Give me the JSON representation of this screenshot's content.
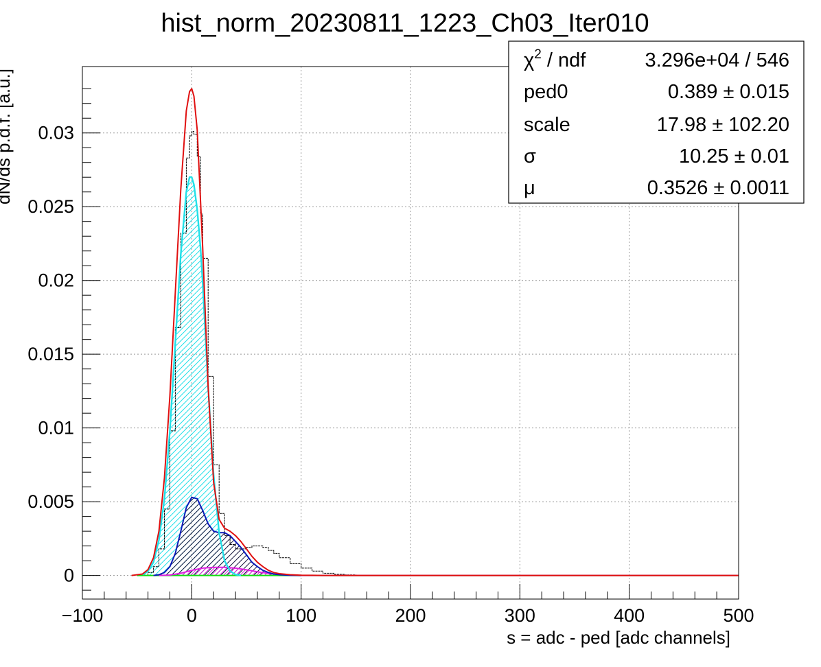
{
  "chart_data": {
    "type": "line",
    "title": "hist_norm_20230811_1223_Ch03_Iter010",
    "xlabel": "s = adc - ped [adc channels]",
    "ylabel": "dN/ds p.d.f. [a.u.]",
    "xlim": [
      -100,
      500
    ],
    "ylim": [
      -0.0016,
      0.0345
    ],
    "grid": true,
    "x_ticks": [
      -100,
      0,
      100,
      200,
      300,
      400,
      500
    ],
    "x_tick_labels": [
      "−100",
      "0",
      "100",
      "200",
      "300",
      "400",
      "500"
    ],
    "y_ticks": [
      0,
      0.005,
      0.01,
      0.015,
      0.02,
      0.025,
      0.03
    ],
    "y_tick_labels": [
      "0",
      "0.005",
      "0.01",
      "0.015",
      "0.02",
      "0.025",
      "0.03"
    ],
    "colors": {
      "data": "#000000",
      "total_fit": "#e01010",
      "pedestal": "#22e0e8",
      "one_pe": "#0a1ab8",
      "two_pe": "#e020e0",
      "background": "#10e010"
    },
    "series": [
      {
        "key": "data",
        "style": "histogram",
        "x": [
          -50,
          -40,
          -35,
          -30,
          -25,
          -20,
          -15,
          -10,
          -5,
          -2,
          0,
          2,
          5,
          8,
          10,
          15,
          20,
          25,
          30,
          35,
          40,
          45,
          50,
          55,
          60,
          65,
          70,
          75,
          80,
          90,
          100,
          110,
          120,
          130,
          140,
          150,
          160,
          170,
          180,
          200,
          250,
          300,
          400,
          500
        ],
        "y": [
          0,
          0.0002,
          0.0006,
          0.0018,
          0.0045,
          0.0098,
          0.0168,
          0.0232,
          0.0283,
          0.0298,
          0.0301,
          0.0299,
          0.0284,
          0.0245,
          0.0215,
          0.0135,
          0.0075,
          0.0042,
          0.0027,
          0.0021,
          0.0018,
          0.0018,
          0.0019,
          0.002,
          0.002,
          0.0019,
          0.0017,
          0.0015,
          0.0012,
          0.0008,
          0.0005,
          0.0003,
          0.00015,
          8e-05,
          4e-05,
          2e-05,
          1e-05,
          5e-06,
          0,
          0,
          0,
          0,
          0,
          0
        ]
      },
      {
        "key": "total_fit",
        "style": "line",
        "x": [
          -55,
          -45,
          -40,
          -35,
          -30,
          -25,
          -20,
          -15,
          -10,
          -5,
          -2,
          0,
          2,
          5,
          10,
          15,
          20,
          25,
          30,
          35,
          40,
          45,
          50,
          55,
          60,
          65,
          70,
          75,
          80,
          90,
          100,
          110,
          120,
          500
        ],
        "y": [
          0,
          0.0001,
          0.0004,
          0.0012,
          0.003,
          0.0066,
          0.0122,
          0.0192,
          0.0262,
          0.0315,
          0.0328,
          0.033,
          0.0325,
          0.0302,
          0.0222,
          0.0128,
          0.0063,
          0.0038,
          0.0032,
          0.003,
          0.0027,
          0.0023,
          0.0018,
          0.0013,
          0.0009,
          0.0006,
          0.00035,
          0.0002,
          0.00012,
          5e-05,
          2e-05,
          1e-05,
          0,
          0
        ]
      },
      {
        "key": "pedestal",
        "style": "filled-hatched",
        "x": [
          -45,
          -40,
          -35,
          -30,
          -25,
          -20,
          -15,
          -10,
          -5,
          -2,
          0,
          2,
          5,
          8,
          10,
          15,
          20,
          25,
          30,
          35,
          40,
          45
        ],
        "y": [
          5e-05,
          0.0003,
          0.0009,
          0.0024,
          0.0052,
          0.0098,
          0.0158,
          0.0218,
          0.026,
          0.027,
          0.027,
          0.0265,
          0.0248,
          0.0222,
          0.0198,
          0.0128,
          0.0068,
          0.0029,
          0.001,
          0.0003,
          6e-05,
          0
        ]
      },
      {
        "key": "one_pe",
        "style": "filled-hatched",
        "x": [
          -35,
          -30,
          -25,
          -20,
          -15,
          -10,
          -5,
          0,
          5,
          10,
          15,
          20,
          25,
          30,
          35,
          40,
          45,
          50,
          55,
          60,
          65,
          70,
          75,
          80,
          90,
          100
        ],
        "y": [
          0,
          5e-05,
          0.0002,
          0.0006,
          0.0015,
          0.003,
          0.0046,
          0.0053,
          0.0052,
          0.0044,
          0.0035,
          0.003,
          0.0029,
          0.0029,
          0.0027,
          0.0023,
          0.0019,
          0.0014,
          0.0009,
          0.0006,
          0.00035,
          0.0002,
          0.0001,
          5e-05,
          1e-05,
          0
        ]
      },
      {
        "key": "two_pe",
        "style": "filled-hatched",
        "x": [
          -30,
          -20,
          -10,
          0,
          10,
          20,
          30,
          40,
          50,
          60,
          70,
          80,
          90,
          100,
          500
        ],
        "y": [
          0,
          3e-05,
          0.00015,
          0.00035,
          0.0005,
          0.00055,
          0.00055,
          0.0005,
          0.00038,
          0.00025,
          0.00014,
          6e-05,
          2e-05,
          0,
          0
        ]
      },
      {
        "key": "background",
        "style": "line",
        "x": [
          -50,
          500
        ],
        "y": [
          0,
          0
        ]
      }
    ],
    "stats_box": {
      "rows": [
        {
          "label_main": "χ",
          "label_sup": "2",
          "label_rest": " / ndf",
          "value": "3.296e+04 / 546"
        },
        {
          "label_main": "ped0",
          "label_sup": "",
          "label_rest": "",
          "value": "0.389 ± 0.015"
        },
        {
          "label_main": "scale",
          "label_sup": "",
          "label_rest": "",
          "value": "17.98 ± 102.20"
        },
        {
          "label_main": "σ",
          "label_sup": "",
          "label_rest": "",
          "value": "10.25 ± 0.01"
        },
        {
          "label_main": "μ",
          "label_sup": "",
          "label_rest": "",
          "value": "0.3526 ± 0.0011"
        }
      ]
    }
  }
}
